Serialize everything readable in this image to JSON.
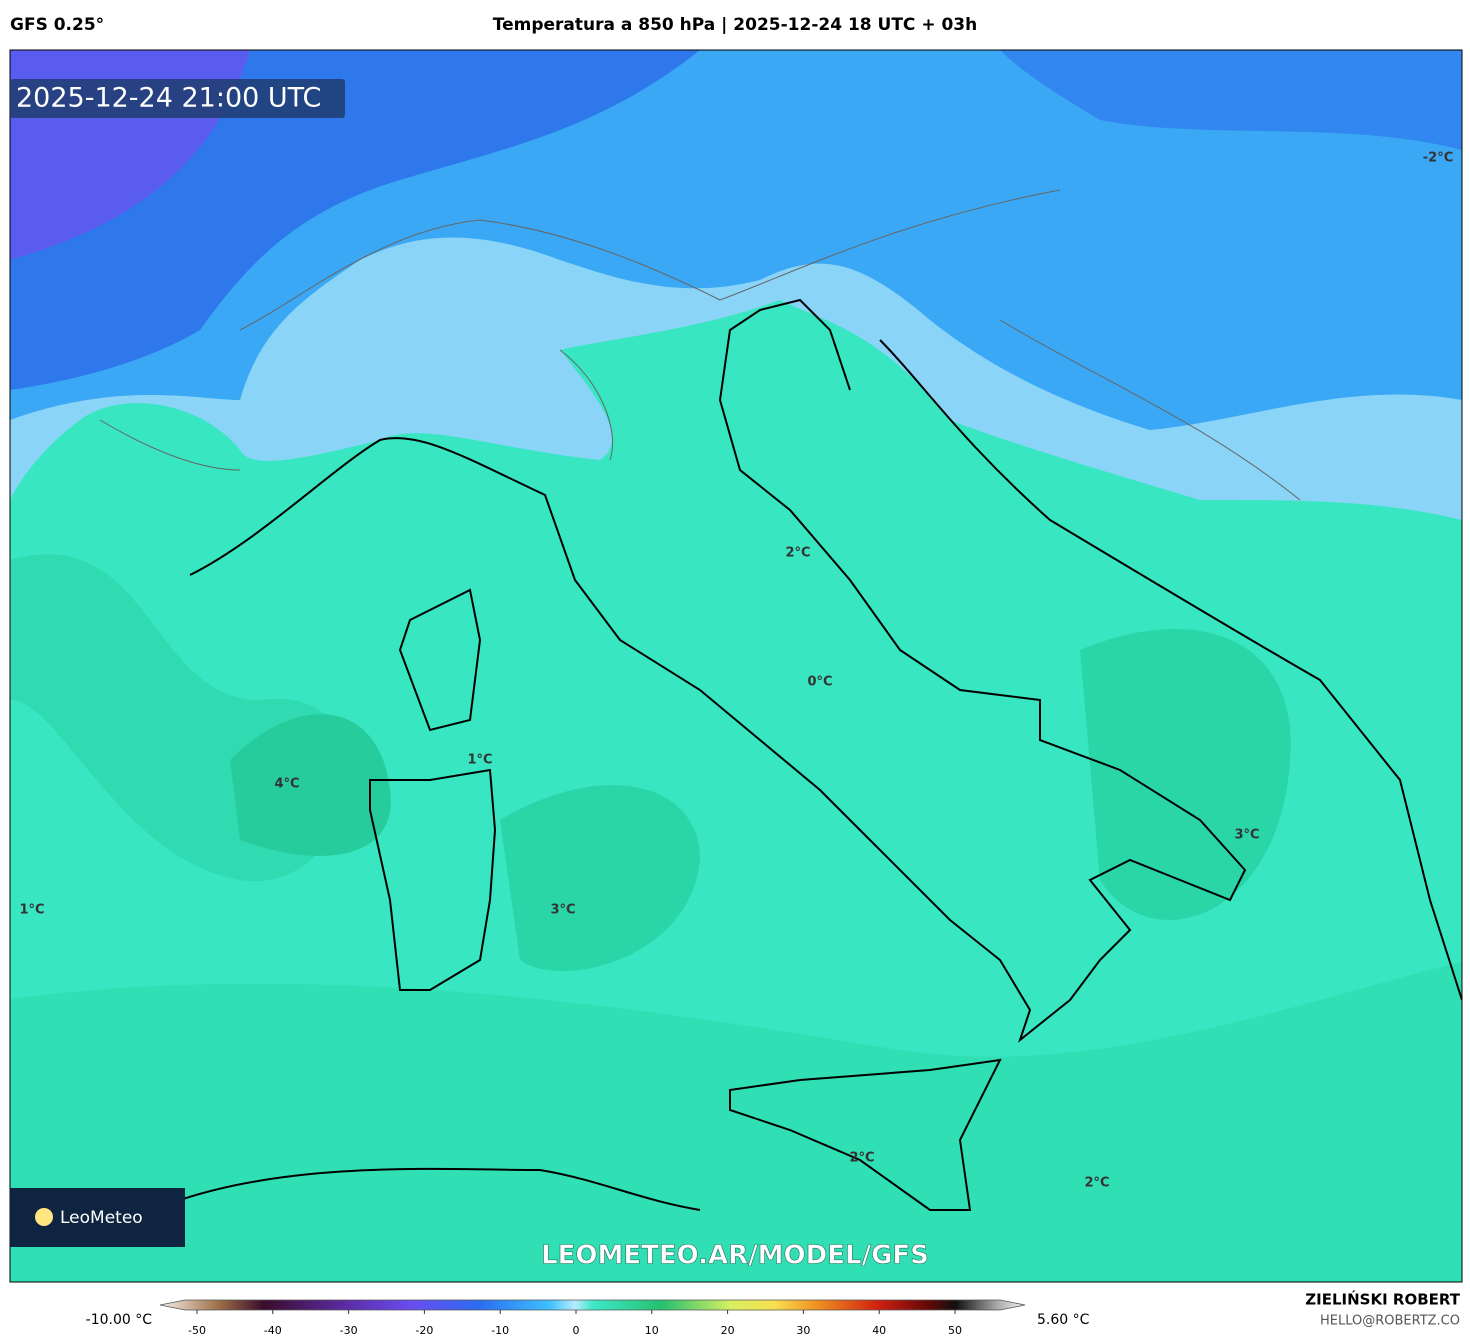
{
  "header": {
    "model": "GFS 0.25°",
    "title": "Temperatura a 850 hPa | 2025-12-24 18 UTC + 03h"
  },
  "map": {
    "valid_time": "2025-12-24 21:00 UTC",
    "contour_labels": [
      "-2°C",
      "2°C",
      "0°C",
      "1°C",
      "4°C",
      "3°C",
      "1°C",
      "3°C",
      "2°C",
      "2°C"
    ],
    "logo": "LeoMeteo",
    "watermark": "LEOMETEO.AR/MODEL/GFS"
  },
  "legend": {
    "min_label": "-10.00 °C",
    "max_label": "5.60 °C",
    "ticks": [
      -50,
      -40,
      -30,
      -20,
      -10,
      0,
      10,
      20,
      30,
      40,
      50
    ]
  },
  "footer": {
    "author": "ZIELIŃSKI ROBERT",
    "contact": "HELLO@ROBERTZ.CO"
  }
}
